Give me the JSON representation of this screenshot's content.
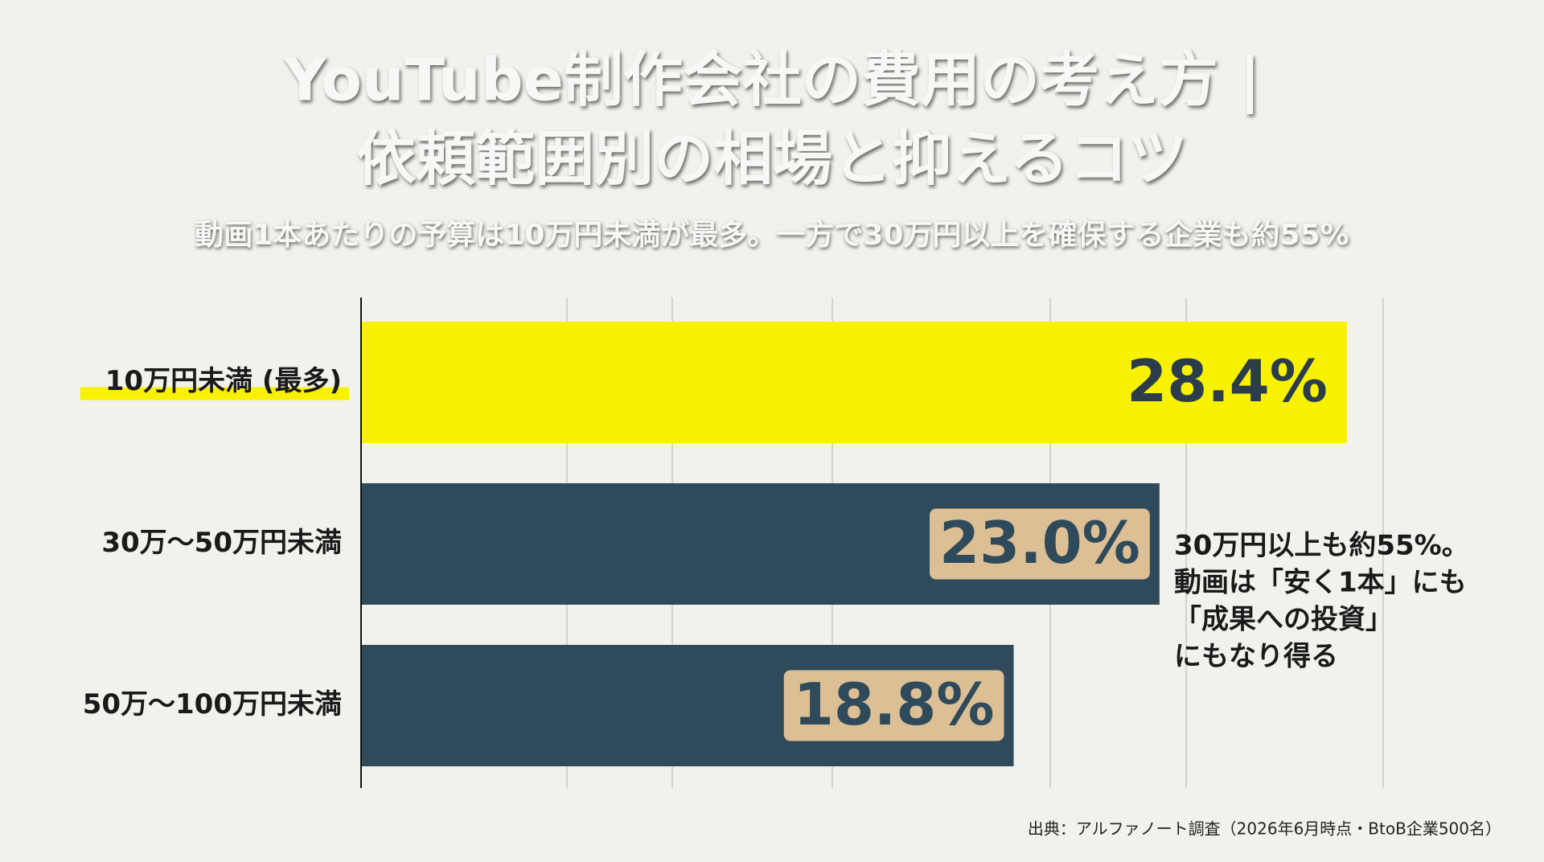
{
  "chart_data": {
    "type": "bar",
    "orientation": "horizontal",
    "title": [
      "YouTube制作会社の費用の考え方 |",
      "依頼範囲別の相場と抑えるコツ"
    ],
    "subtitle": "動画1本あたりの予算は10万円未満が最多。一方で30万円以上を確保する企業も約55%",
    "categories": [
      "10万円未満 (最多)",
      "30万〜50万円未満",
      "50万〜100万円未満"
    ],
    "values": [
      28.4,
      23.0,
      18.8
    ],
    "value_labels": [
      "28.4%",
      "23.0%",
      "18.8%"
    ],
    "colors": [
      "#f8f200",
      "#2f4a5a",
      "#2f4a5a"
    ],
    "label_colors": [
      "#2b3d4b",
      "#2f4a5a",
      "#2f4a5a"
    ],
    "label_box_color": "#dcbf95",
    "highlight_color": "#f8f200",
    "xlim": [
      0,
      30
    ],
    "annotation": [
      "30万円以上も約55%。",
      "動画は「安く1本」にも",
      "「成果への投資」",
      "にもなり得る"
    ],
    "source": "出典：アルファノート調査（2026年6月時点・BtoB企業500名）"
  }
}
